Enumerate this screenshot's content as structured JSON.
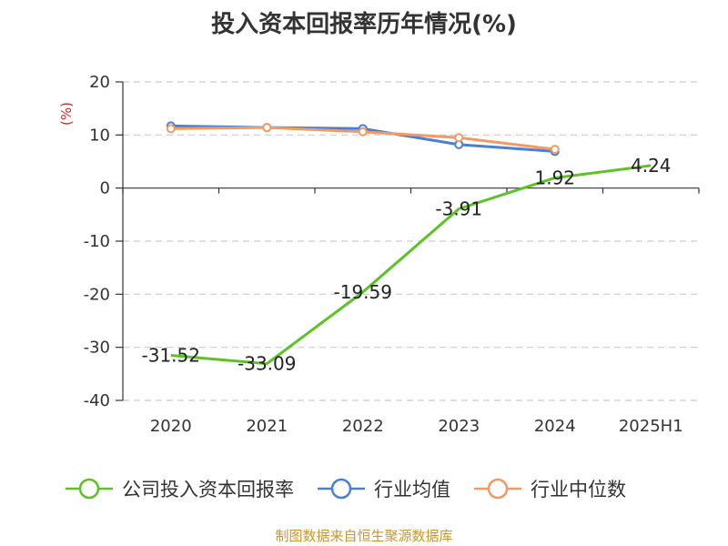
{
  "chart_data": {
    "type": "line",
    "title": "投入资本回报率历年情况(%)",
    "ylabel": "(%)",
    "xlabel": "",
    "categories": [
      "2020",
      "2021",
      "2022",
      "2023",
      "2024",
      "2025H1"
    ],
    "ylim": [
      -40,
      20
    ],
    "yticks": [
      20,
      10,
      0,
      -10,
      -20,
      -30,
      -40
    ],
    "grid": true,
    "legend_position": "bottom",
    "series": [
      {
        "name": "公司投入资本回报率",
        "color": "#5cc225",
        "values": [
          -31.52,
          -33.09,
          -19.59,
          -3.91,
          1.92,
          4.24
        ],
        "labels": [
          "-31.52",
          "-33.09",
          "-19.59",
          "-3.91",
          "1.92",
          "4.24"
        ]
      },
      {
        "name": "行业均值",
        "color": "#4a7fd6",
        "values": [
          11.7,
          11.4,
          11.2,
          8.2,
          6.9,
          null
        ]
      },
      {
        "name": "行业中位数",
        "color": "#f39a64",
        "values": [
          11.2,
          11.4,
          10.6,
          9.5,
          7.3,
          null
        ]
      }
    ]
  },
  "footer": {
    "source": "制图数据来自恒生聚源数据库"
  }
}
